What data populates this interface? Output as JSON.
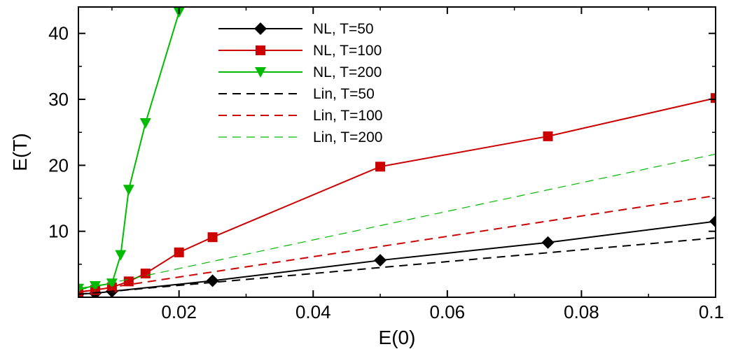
{
  "chart_data": {
    "type": "line",
    "xlabel": "E(0)",
    "ylabel": "E(T)",
    "xlim": [
      0.005,
      0.1
    ],
    "ylim": [
      0,
      44
    ],
    "xticks": [
      0.02,
      0.04,
      0.06,
      0.08,
      0.1
    ],
    "xtick_labels": [
      "0.02",
      "0.04",
      "0.06",
      "0.08",
      "0.1"
    ],
    "yticks": [
      10,
      20,
      30,
      40
    ],
    "ytick_labels": [
      "10",
      "20",
      "30",
      "40"
    ],
    "grid": false,
    "legend_position": "top-center",
    "series": [
      {
        "name": "NL, T=50",
        "color": "#000000",
        "style": "solid",
        "marker": "diamond",
        "x": [
          0.005,
          0.0075,
          0.01,
          0.025,
          0.05,
          0.075,
          0.1
        ],
        "y": [
          0.5,
          0.6,
          0.9,
          2.5,
          5.6,
          8.3,
          11.5
        ]
      },
      {
        "name": "NL, T=100",
        "color": "#cc0000",
        "style": "solid",
        "marker": "square",
        "x": [
          0.005,
          0.0075,
          0.01,
          0.0125,
          0.015,
          0.02,
          0.025,
          0.05,
          0.075,
          0.1
        ],
        "y": [
          0.8,
          1.1,
          1.5,
          2.4,
          3.6,
          6.8,
          9.1,
          19.8,
          24.4,
          30.2
        ]
      },
      {
        "name": "NL, T=200",
        "color": "#00bb00",
        "style": "solid",
        "marker": "triangle-down",
        "x": [
          0.005,
          0.0075,
          0.01,
          0.0113,
          0.0125,
          0.015,
          0.02
        ],
        "y": [
          1.3,
          1.7,
          2.1,
          6.4,
          16.3,
          26.4,
          43.2
        ]
      },
      {
        "name": "Lin, T=50",
        "color": "#000000",
        "style": "dashed",
        "marker": "none",
        "x": [
          0.005,
          0.1
        ],
        "y": [
          0.45,
          9.0
        ]
      },
      {
        "name": "Lin, T=100",
        "color": "#cc0000",
        "style": "dashed",
        "marker": "none",
        "x": [
          0.005,
          0.1
        ],
        "y": [
          0.75,
          15.4
        ]
      },
      {
        "name": "Lin, T=200",
        "color": "#00bb00",
        "style": "dashed-thin",
        "marker": "none",
        "x": [
          0.005,
          0.1
        ],
        "y": [
          1.1,
          21.7
        ]
      }
    ]
  }
}
